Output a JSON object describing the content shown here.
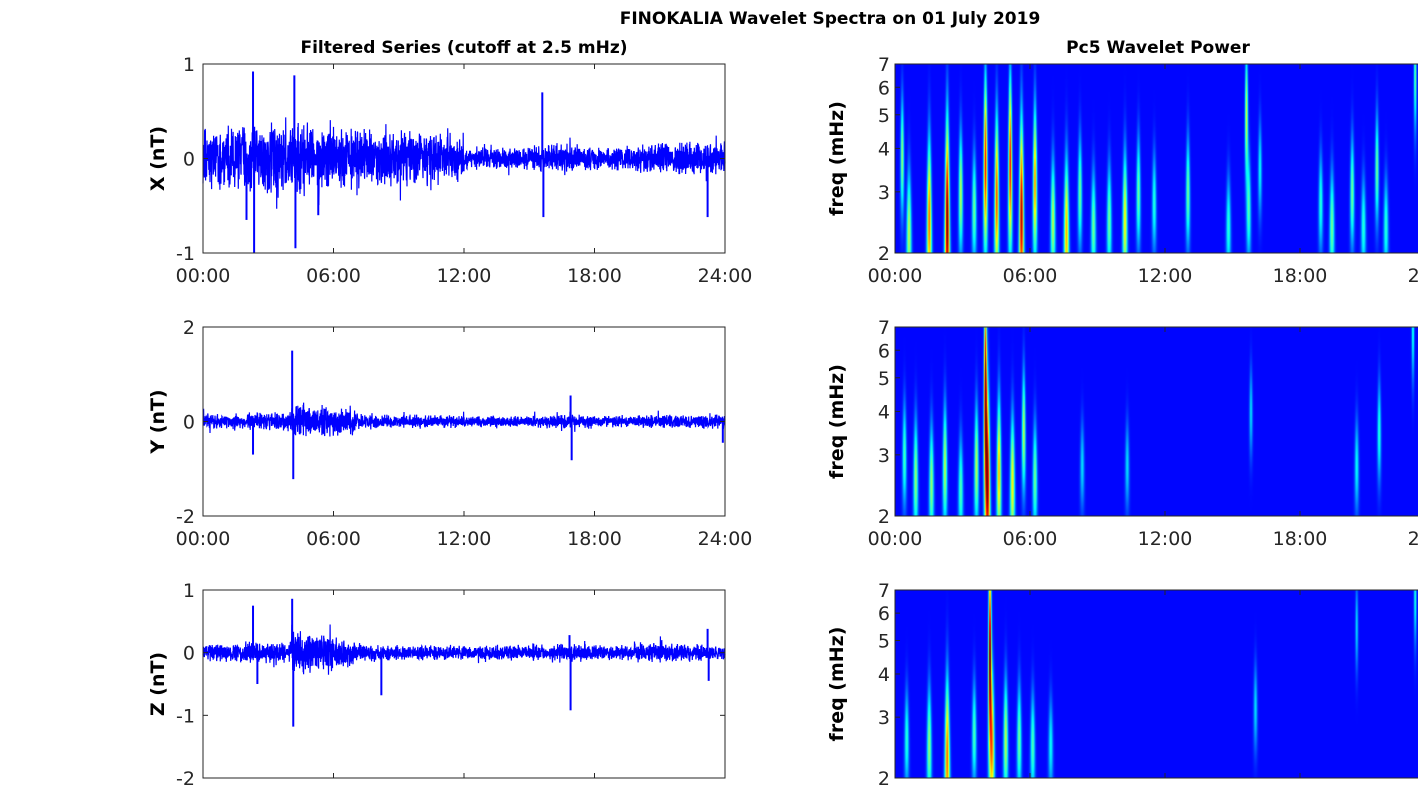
{
  "chart_data": {
    "title": "FINOKALIA Wavelet Spectra on 01 July 2019",
    "left_title": "Filtered Series (cutoff at 2.5 mHz)",
    "right_title": "Pc5 Wavelet Power",
    "xticks": [
      "00:00",
      "06:00",
      "12:00",
      "18:00",
      "24:00"
    ],
    "xlim_hours": [
      0,
      24
    ],
    "series_panels": [
      {
        "type": "line",
        "ylabel": "X (nT)",
        "ylim": [
          -1,
          1
        ],
        "yticks": [
          "-1",
          "0",
          "1"
        ],
        "color": "#0000ff",
        "show_xticks": true,
        "envelope": [
          0.28,
          0.3,
          0.32,
          0.3,
          0.35,
          0.33,
          0.3,
          0.28,
          0.25,
          0.25,
          0.25,
          0.22,
          0.12,
          0.1,
          0.1,
          0.12,
          0.14,
          0.1,
          0.1,
          0.12,
          0.14,
          0.15,
          0.15,
          0.15
        ],
        "spikes": [
          [
            2.3,
            0.92
          ],
          [
            2.35,
            -1.0
          ],
          [
            4.2,
            0.88
          ],
          [
            4.25,
            -0.95
          ],
          [
            15.6,
            0.7
          ],
          [
            15.65,
            -0.62
          ],
          [
            23.2,
            -0.62
          ],
          [
            2.0,
            -0.65
          ],
          [
            5.3,
            -0.6
          ]
        ]
      },
      {
        "type": "line",
        "ylabel": "Y (nT)",
        "ylim": [
          -2,
          2
        ],
        "yticks": [
          "-2",
          "0",
          "2"
        ],
        "color": "#0000ff",
        "show_xticks": true,
        "envelope": [
          0.14,
          0.14,
          0.16,
          0.18,
          0.35,
          0.3,
          0.25,
          0.14,
          0.12,
          0.12,
          0.12,
          0.12,
          0.1,
          0.1,
          0.1,
          0.12,
          0.14,
          0.12,
          0.1,
          0.1,
          0.12,
          0.14,
          0.14,
          0.14
        ],
        "spikes": [
          [
            4.1,
            1.5
          ],
          [
            4.15,
            -1.22
          ],
          [
            16.9,
            0.55
          ],
          [
            16.95,
            -0.82
          ],
          [
            2.3,
            -0.7
          ],
          [
            23.9,
            -0.45
          ]
        ]
      },
      {
        "type": "line",
        "ylabel": "Z (nT)",
        "ylim": [
          -2,
          1
        ],
        "yticks": [
          "-2",
          "-1",
          "0",
          "1"
        ],
        "color": "#0000ff",
        "show_xticks": false,
        "envelope": [
          0.12,
          0.13,
          0.15,
          0.14,
          0.28,
          0.25,
          0.2,
          0.12,
          0.1,
          0.1,
          0.1,
          0.1,
          0.1,
          0.1,
          0.1,
          0.12,
          0.13,
          0.12,
          0.1,
          0.12,
          0.15,
          0.14,
          0.12,
          0.1
        ],
        "spikes": [
          [
            2.3,
            0.75
          ],
          [
            4.1,
            0.86
          ],
          [
            4.15,
            -1.18
          ],
          [
            8.2,
            -0.68
          ],
          [
            16.9,
            -0.92
          ],
          [
            16.85,
            0.28
          ],
          [
            23.2,
            0.38
          ],
          [
            23.25,
            -0.45
          ],
          [
            2.5,
            -0.5
          ]
        ]
      }
    ],
    "wavelet_panels": [
      {
        "type": "heatmap",
        "ylabel": "freq (mHz)",
        "ylim": [
          2,
          7
        ],
        "yticks": [
          "2",
          "3",
          "4",
          "5",
          "6",
          "7"
        ],
        "show_xticks": true,
        "blobs": [
          [
            0.3,
            3.8,
            0.55
          ],
          [
            0.6,
            2.3,
            0.6
          ],
          [
            1.5,
            2.5,
            0.9
          ],
          [
            2.3,
            2.5,
            1.25
          ],
          [
            2.9,
            3.0,
            0.6
          ],
          [
            3.5,
            2.7,
            0.5
          ],
          [
            4.0,
            3.6,
            1.05
          ],
          [
            4.5,
            2.9,
            0.95
          ],
          [
            5.1,
            3.6,
            1.05
          ],
          [
            5.6,
            2.6,
            1.15
          ],
          [
            6.2,
            3.2,
            0.85
          ],
          [
            7.0,
            2.5,
            0.6
          ],
          [
            7.6,
            2.3,
            0.8
          ],
          [
            8.2,
            3.0,
            0.5
          ],
          [
            8.8,
            2.4,
            0.5
          ],
          [
            9.5,
            2.5,
            0.5
          ],
          [
            10.2,
            2.5,
            0.7
          ],
          [
            10.8,
            3.0,
            0.5
          ],
          [
            11.5,
            2.8,
            0.4
          ],
          [
            13.0,
            3.0,
            0.5
          ],
          [
            14.8,
            2.4,
            0.4
          ],
          [
            15.6,
            5.0,
            0.65
          ],
          [
            15.7,
            2.7,
            0.45
          ],
          [
            16.2,
            3.5,
            0.35
          ],
          [
            18.9,
            2.8,
            0.4
          ],
          [
            19.4,
            2.4,
            0.5
          ],
          [
            20.3,
            3.0,
            0.5
          ],
          [
            20.8,
            2.4,
            0.4
          ],
          [
            21.4,
            3.5,
            0.5
          ],
          [
            21.8,
            2.4,
            0.4
          ],
          [
            23.1,
            6.5,
            0.5
          ]
        ]
      },
      {
        "type": "heatmap",
        "ylabel": "freq (mHz)",
        "ylim": [
          2,
          7
        ],
        "yticks": [
          "2",
          "3",
          "4",
          "5",
          "6",
          "7"
        ],
        "show_xticks": true,
        "blobs": [
          [
            0.4,
            3.0,
            0.45
          ],
          [
            0.9,
            2.6,
            0.55
          ],
          [
            1.6,
            2.5,
            0.55
          ],
          [
            2.2,
            2.8,
            0.6
          ],
          [
            2.9,
            2.4,
            0.45
          ],
          [
            3.6,
            2.8,
            0.6
          ],
          [
            4.0,
            4.5,
            1.3
          ],
          [
            4.1,
            2.5,
            1.1
          ],
          [
            4.6,
            2.7,
            0.8
          ],
          [
            5.2,
            2.5,
            0.7
          ],
          [
            5.7,
            3.5,
            0.6
          ],
          [
            6.2,
            2.6,
            0.5
          ],
          [
            8.3,
            2.8,
            0.3
          ],
          [
            10.3,
            2.8,
            0.3
          ],
          [
            15.8,
            4.0,
            0.3
          ],
          [
            20.5,
            2.8,
            0.35
          ],
          [
            21.5,
            3.5,
            0.4
          ],
          [
            23.0,
            6.8,
            0.4
          ]
        ]
      },
      {
        "type": "heatmap",
        "ylabel": "freq (mHz)",
        "ylim": [
          2,
          7
        ],
        "yticks": [
          "2",
          "3",
          "4",
          "5",
          "6",
          "7"
        ],
        "show_xticks": false,
        "blobs": [
          [
            0.5,
            2.6,
            0.4
          ],
          [
            1.5,
            2.5,
            0.55
          ],
          [
            2.3,
            2.3,
            0.9
          ],
          [
            3.5,
            2.7,
            0.45
          ],
          [
            4.2,
            4.5,
            1.3
          ],
          [
            4.3,
            2.5,
            0.75
          ],
          [
            4.9,
            2.6,
            0.6
          ],
          [
            5.5,
            2.6,
            0.5
          ],
          [
            6.1,
            2.5,
            0.45
          ],
          [
            6.9,
            2.5,
            0.35
          ],
          [
            16.0,
            3.2,
            0.3
          ],
          [
            20.5,
            5.5,
            0.3
          ],
          [
            23.1,
            6.8,
            0.4
          ]
        ]
      }
    ]
  }
}
